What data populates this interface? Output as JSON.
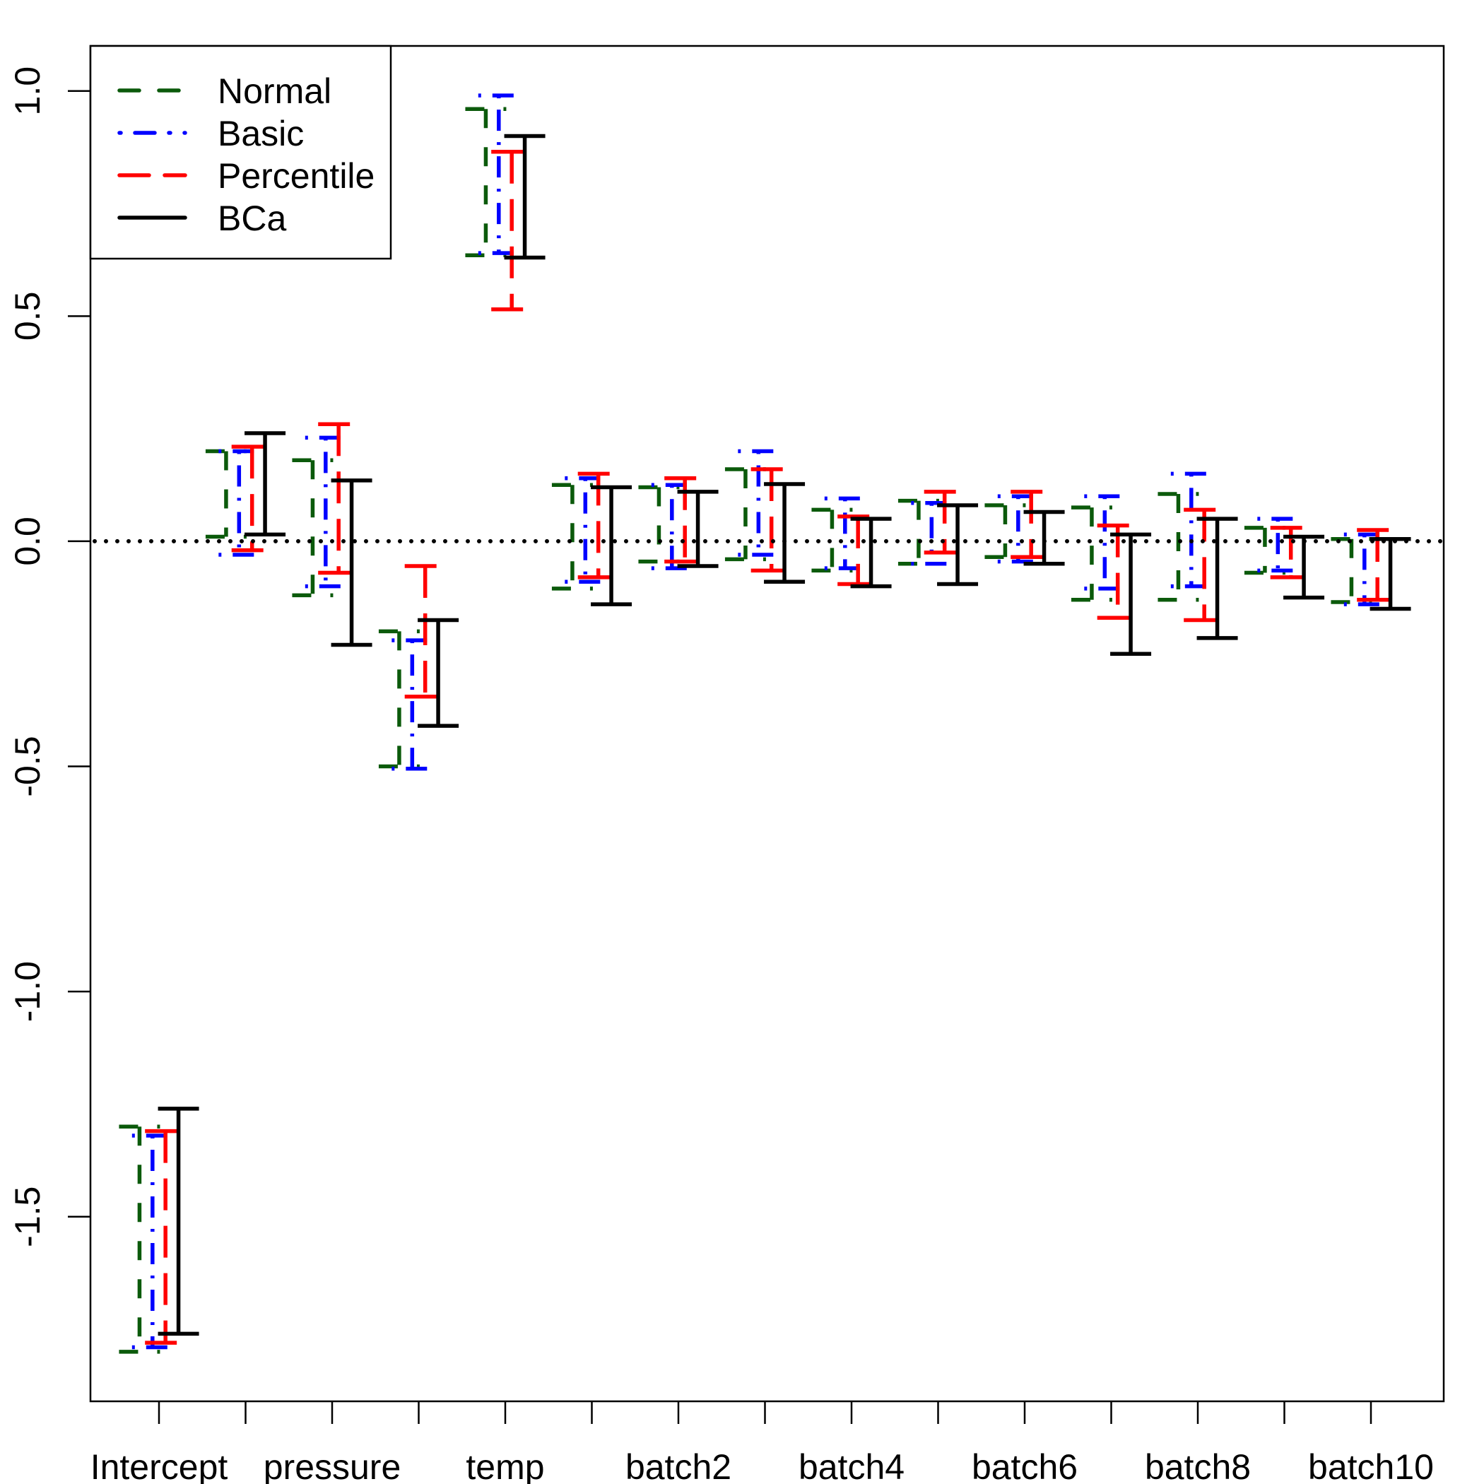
{
  "chart_data": {
    "type": "errorbar",
    "title": "",
    "xlabel": "",
    "ylabel": "",
    "ylim": [
      -1.91,
      1.1
    ],
    "grid": false,
    "legend_position": "top-left",
    "reference_line": {
      "y": 0,
      "style": "dotted",
      "color": "#000000"
    },
    "categories": [
      "Intercept",
      "",
      "pressure",
      "",
      "temp",
      "",
      "batch2",
      "",
      "batch4",
      "",
      "batch6",
      "",
      "batch8",
      "",
      "batch10"
    ],
    "yticks": [
      "-1.5",
      "-1.0",
      "-0.5",
      "0.0",
      "0.5",
      "1.0"
    ],
    "ytick_values": [
      -1.5,
      -1.0,
      -0.5,
      0.0,
      0.5,
      1.0
    ],
    "series": [
      {
        "name": "Normal",
        "color": "#0b5a0b",
        "style": "dashed",
        "lower": [
          -1.8,
          0.01,
          -0.12,
          -0.5,
          0.635,
          -0.105,
          -0.045,
          -0.04,
          -0.065,
          -0.05,
          -0.035,
          -0.13,
          -0.13,
          -0.07,
          -0.135
        ],
        "upper": [
          -1.3,
          0.2,
          0.18,
          -0.2,
          0.96,
          0.125,
          0.12,
          0.16,
          0.07,
          0.09,
          0.08,
          0.075,
          0.105,
          0.03,
          0.005
        ]
      },
      {
        "name": "Basic",
        "color": "#0000ff",
        "style": "dotdash",
        "lower": [
          -1.79,
          -0.03,
          -0.1,
          -0.505,
          0.64,
          -0.09,
          -0.06,
          -0.03,
          -0.06,
          -0.05,
          -0.045,
          -0.105,
          -0.1,
          -0.065,
          -0.14
        ],
        "upper": [
          -1.32,
          0.2,
          0.23,
          -0.22,
          0.99,
          0.14,
          0.125,
          0.2,
          0.095,
          0.085,
          0.1,
          0.1,
          0.15,
          0.05,
          0.015
        ]
      },
      {
        "name": "Percentile",
        "color": "#ff0000",
        "style": "longdash",
        "lower": [
          -1.78,
          -0.02,
          -0.07,
          -0.345,
          0.515,
          -0.08,
          -0.045,
          -0.065,
          -0.095,
          -0.025,
          -0.035,
          -0.17,
          -0.175,
          -0.08,
          -0.13
        ],
        "upper": [
          -1.31,
          0.21,
          0.26,
          -0.055,
          0.865,
          0.15,
          0.14,
          0.16,
          0.055,
          0.11,
          0.11,
          0.035,
          0.07,
          0.03,
          0.025
        ]
      },
      {
        "name": "BCa",
        "color": "#000000",
        "style": "solid",
        "lower": [
          -1.76,
          0.015,
          -0.23,
          -0.41,
          0.63,
          -0.14,
          -0.055,
          -0.09,
          -0.1,
          -0.095,
          -0.05,
          -0.25,
          -0.215,
          -0.125,
          -0.15
        ],
        "upper": [
          -1.26,
          0.24,
          0.135,
          -0.175,
          0.9,
          0.12,
          0.11,
          0.127,
          0.05,
          0.08,
          0.065,
          0.015,
          0.05,
          0.01,
          0.005
        ]
      }
    ]
  }
}
